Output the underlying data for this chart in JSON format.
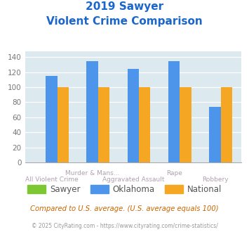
{
  "title_line1": "2019 Sawyer",
  "title_line2": "Violent Crime Comparison",
  "categories_row1": [
    "",
    "Murder & Mans...",
    "",
    "Rape",
    ""
  ],
  "categories_row2": [
    "All Violent Crime",
    "",
    "Aggravated Assault",
    "",
    "Robbery"
  ],
  "sawyer": [
    0,
    0,
    0,
    0,
    0
  ],
  "oklahoma": [
    115,
    135,
    124,
    135,
    74
  ],
  "national": [
    100,
    100,
    100,
    100,
    100
  ],
  "bar_colors": {
    "sawyer": "#7dc832",
    "oklahoma": "#4d94eb",
    "national": "#f5a623"
  },
  "ylim": [
    0,
    148
  ],
  "yticks": [
    0,
    20,
    40,
    60,
    80,
    100,
    120,
    140
  ],
  "plot_bg": "#dce9ef",
  "title_color": "#1a66cc",
  "axis_label_color": "#b0a0b0",
  "tick_label_color": "#777777",
  "legend_labels": [
    "Sawyer",
    "Oklahoma",
    "National"
  ],
  "footnote1": "Compared to U.S. average. (U.S. average equals 100)",
  "footnote2": "© 2025 CityRating.com - https://www.cityrating.com/crime-statistics/",
  "footnote1_color": "#cc6600",
  "footnote2_color": "#999999"
}
